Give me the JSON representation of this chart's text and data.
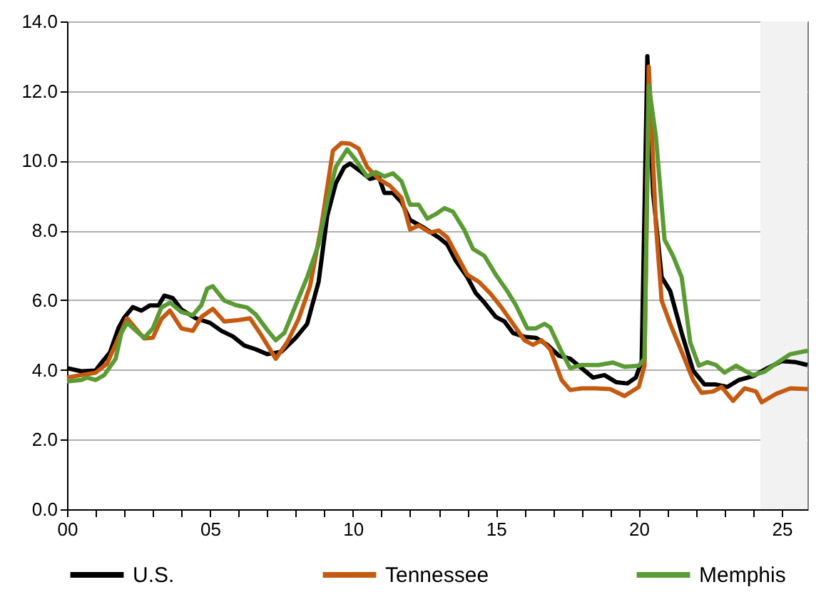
{
  "chart_data": {
    "type": "line",
    "xlim": [
      0,
      25.9
    ],
    "xticks": [
      {
        "value": 0,
        "label": "00"
      },
      {
        "value": 1,
        "label": null
      },
      {
        "value": 2,
        "label": null
      },
      {
        "value": 3,
        "label": null
      },
      {
        "value": 4,
        "label": null
      },
      {
        "value": 5,
        "label": "05"
      },
      {
        "value": 6,
        "label": null
      },
      {
        "value": 7,
        "label": null
      },
      {
        "value": 8,
        "label": null
      },
      {
        "value": 9,
        "label": null
      },
      {
        "value": 10,
        "label": "10"
      },
      {
        "value": 11,
        "label": null
      },
      {
        "value": 12,
        "label": null
      },
      {
        "value": 13,
        "label": null
      },
      {
        "value": 14,
        "label": null
      },
      {
        "value": 15,
        "label": "15"
      },
      {
        "value": 16,
        "label": null
      },
      {
        "value": 17,
        "label": null
      },
      {
        "value": 18,
        "label": null
      },
      {
        "value": 19,
        "label": null
      },
      {
        "value": 20,
        "label": "20"
      },
      {
        "value": 21,
        "label": null
      },
      {
        "value": 22,
        "label": null
      },
      {
        "value": 23,
        "label": null
      },
      {
        "value": 24,
        "label": null
      },
      {
        "value": 25,
        "label": "25"
      }
    ],
    "ylim": [
      0,
      14
    ],
    "yticks": [
      {
        "value": 0,
        "label": "0.0"
      },
      {
        "value": 2,
        "label": "2.0"
      },
      {
        "value": 4,
        "label": "4.0"
      },
      {
        "value": 6,
        "label": "6.0"
      },
      {
        "value": 8,
        "label": "8.0"
      },
      {
        "value": 10,
        "label": "10.0"
      },
      {
        "value": 12,
        "label": "12.0"
      },
      {
        "value": 14,
        "label": "14.0"
      }
    ],
    "grid": "y",
    "legend": "bottom",
    "line_style": "solid",
    "bands": [
      {
        "axis": "x",
        "from": 24.25,
        "to": 25.9,
        "color": "#f2f2f2"
      }
    ],
    "series": [
      {
        "name": "U.S.",
        "color": "#000000",
        "x": [
          0,
          0.5,
          1,
          1.2,
          1.5,
          1.8,
          2,
          2.3,
          2.6,
          2.9,
          3.2,
          3.4,
          3.7,
          4,
          4.5,
          5,
          5.4,
          5.8,
          6.2,
          6.6,
          7,
          7.5,
          8,
          8.4,
          8.8,
          9.1,
          9.4,
          9.7,
          9.9,
          10.3,
          10.6,
          10.9,
          11.1,
          11.4,
          11.7,
          12,
          12.5,
          13,
          13.3,
          13.6,
          14,
          14.3,
          14.6,
          15,
          15.3,
          15.6,
          16,
          16.4,
          16.8,
          17.2,
          17.6,
          18,
          18.4,
          18.8,
          19.2,
          19.6,
          19.9,
          20.1,
          20.3,
          20.5,
          20.8,
          21.1,
          21.5,
          21.9,
          22.3,
          22.7,
          23.1,
          23.5,
          24,
          24.5,
          25,
          25.5,
          25.9
        ],
        "values": [
          4.05,
          3.96,
          3.98,
          4.2,
          4.5,
          5.2,
          5.5,
          5.8,
          5.7,
          5.85,
          5.85,
          6.13,
          6.06,
          5.73,
          5.48,
          5.35,
          5.12,
          4.96,
          4.7,
          4.59,
          4.45,
          4.52,
          4.92,
          5.32,
          6.53,
          8.41,
          9.35,
          9.82,
          9.92,
          9.68,
          9.48,
          9.55,
          9.08,
          9.08,
          8.81,
          8.3,
          8.07,
          7.8,
          7.6,
          7.13,
          6.66,
          6.2,
          5.93,
          5.52,
          5.39,
          5.06,
          4.95,
          4.92,
          4.72,
          4.41,
          4.32,
          4.05,
          3.78,
          3.85,
          3.65,
          3.61,
          3.78,
          4.25,
          13.0,
          9.08,
          6.66,
          6.26,
          5.06,
          3.98,
          3.58,
          3.58,
          3.51,
          3.71,
          3.82,
          4.05,
          4.25,
          4.22,
          4.14
        ]
      },
      {
        "name": "Tennessee",
        "color": "#c55a11",
        "x": [
          0,
          0.5,
          1,
          1.4,
          1.8,
          2.1,
          2.4,
          2.7,
          3,
          3.3,
          3.6,
          4,
          4.4,
          4.7,
          5.1,
          5.5,
          6,
          6.4,
          6.8,
          7.3,
          7.7,
          8.1,
          8.5,
          8.9,
          9.3,
          9.6,
          9.9,
          10.2,
          10.5,
          10.9,
          11.3,
          11.7,
          12,
          12.3,
          12.7,
          13,
          13.3,
          13.6,
          14,
          14.4,
          14.8,
          15.2,
          15.6,
          16,
          16.3,
          16.6,
          16.9,
          17.3,
          17.6,
          18,
          18.5,
          19,
          19.5,
          20,
          20.2,
          20.35,
          20.6,
          20.8,
          21.1,
          21.5,
          21.9,
          22.2,
          22.6,
          22.9,
          23.3,
          23.7,
          24.1,
          24.3,
          24.8,
          25.3,
          25.9
        ],
        "values": [
          3.78,
          3.85,
          3.92,
          4.18,
          4.92,
          5.48,
          5.19,
          4.9,
          4.92,
          5.46,
          5.7,
          5.19,
          5.12,
          5.52,
          5.75,
          5.39,
          5.43,
          5.48,
          4.99,
          4.32,
          4.79,
          5.46,
          6.4,
          8.14,
          10.29,
          10.51,
          10.49,
          10.35,
          9.82,
          9.48,
          9.28,
          8.94,
          8.03,
          8.14,
          7.94,
          8.0,
          7.8,
          7.34,
          6.73,
          6.53,
          6.2,
          5.79,
          5.32,
          4.85,
          4.72,
          4.85,
          4.59,
          3.71,
          3.42,
          3.47,
          3.47,
          3.45,
          3.25,
          3.51,
          4.12,
          12.7,
          8.14,
          5.99,
          5.32,
          4.52,
          3.71,
          3.34,
          3.38,
          3.51,
          3.11,
          3.47,
          3.38,
          3.07,
          3.31,
          3.47,
          3.45
        ]
      },
      {
        "name": "Memphis",
        "color": "#5b9b34",
        "x": [
          0,
          0.5,
          0.7,
          1,
          1.3,
          1.7,
          1.9,
          2.1,
          2.5,
          2.7,
          3,
          3.3,
          3.6,
          4,
          4.4,
          4.7,
          4.9,
          5.1,
          5.5,
          5.9,
          6.3,
          6.6,
          7,
          7.3,
          7.6,
          8,
          8.4,
          8.8,
          9.1,
          9.4,
          9.8,
          10.1,
          10.5,
          10.8,
          11.1,
          11.4,
          11.7,
          12,
          12.3,
          12.6,
          12.9,
          13.2,
          13.5,
          13.9,
          14.2,
          14.6,
          15,
          15.4,
          15.7,
          16.1,
          16.4,
          16.7,
          16.9,
          17.3,
          17.6,
          18,
          18.6,
          19.1,
          19.5,
          20,
          20.2,
          20.35,
          20.6,
          20.9,
          21.2,
          21.5,
          21.8,
          22.1,
          22.4,
          22.7,
          23,
          23.4,
          23.7,
          24,
          24.4,
          24.8,
          25.3,
          25.9
        ],
        "values": [
          3.67,
          3.71,
          3.78,
          3.71,
          3.85,
          4.32,
          5.06,
          5.35,
          5.06,
          4.92,
          5.19,
          5.79,
          5.93,
          5.66,
          5.57,
          5.86,
          6.33,
          6.4,
          5.99,
          5.86,
          5.79,
          5.59,
          5.15,
          4.85,
          5.06,
          5.86,
          6.66,
          7.6,
          8.81,
          9.82,
          10.33,
          10.02,
          9.55,
          9.68,
          9.55,
          9.64,
          9.41,
          8.74,
          8.74,
          8.34,
          8.47,
          8.64,
          8.54,
          8.01,
          7.47,
          7.27,
          6.73,
          6.26,
          5.86,
          5.19,
          5.19,
          5.32,
          5.22,
          4.52,
          4.05,
          4.14,
          4.14,
          4.21,
          4.09,
          4.12,
          4.32,
          12.16,
          10.69,
          7.74,
          7.27,
          6.66,
          4.79,
          4.12,
          4.22,
          4.14,
          3.92,
          4.12,
          3.98,
          3.85,
          3.95,
          4.18,
          4.45,
          4.55
        ]
      }
    ]
  }
}
